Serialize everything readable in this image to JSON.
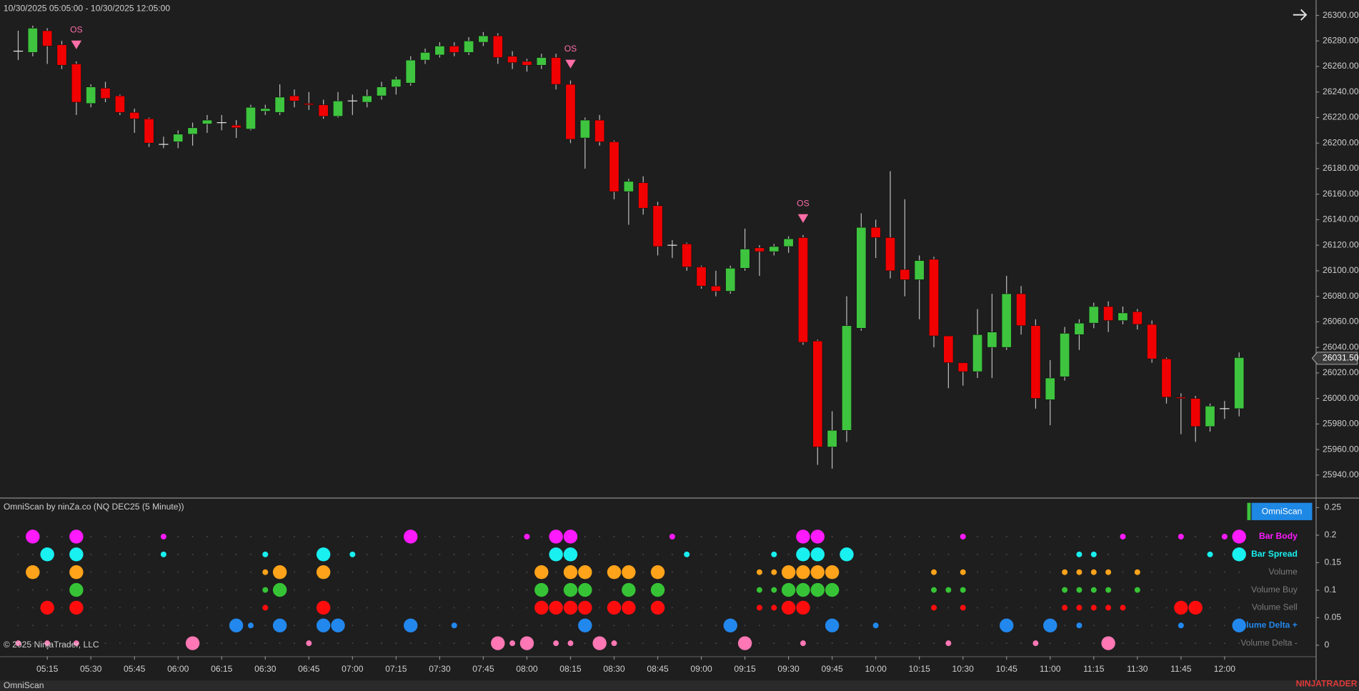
{
  "ui": {
    "range": "10/30/2025 05:05:00 - 10/30/2025 12:05:00",
    "copyright": "© 2025 NinjaTrader, LLC",
    "logo": "NINJATRADER",
    "tab": "OmniScan"
  },
  "chart_data": [
    {
      "type": "candlestick",
      "categories": [
        null,
        null,
        "05:15",
        null,
        null,
        "05:30",
        null,
        null,
        "05:45",
        null,
        null,
        "06:00",
        null,
        null,
        "06:15",
        null,
        null,
        "06:30",
        null,
        null,
        "06:45",
        null,
        null,
        "07:00",
        null,
        null,
        "07:15",
        null,
        null,
        "07:30",
        null,
        null,
        "07:45",
        null,
        null,
        "08:00",
        null,
        null,
        "08:15",
        null,
        null,
        "08:30",
        null,
        null,
        "08:45",
        null,
        null,
        "09:00",
        null,
        null,
        "09:15",
        null,
        null,
        "09:30",
        null,
        null,
        "09:45",
        null,
        null,
        "10:00",
        null,
        null,
        "10:15",
        null,
        null,
        "10:30",
        null,
        null,
        "10:45",
        null,
        null,
        "11:00",
        null,
        null,
        "11:15",
        null,
        null,
        "11:30",
        null,
        null,
        "11:45",
        null,
        null,
        "12:00",
        null
      ],
      "open": [
        26272,
        26271,
        26288,
        26277,
        26262,
        26231,
        26243,
        26237,
        26224,
        26219,
        26199,
        26201,
        26207,
        26215,
        26216,
        26214,
        26211,
        26225,
        26224,
        26237,
        26231,
        26230,
        26221,
        26233,
        26232,
        26237,
        26244,
        26247,
        26265,
        26269,
        26276,
        26271,
        26279,
        26284,
        26268,
        26264,
        26261,
        26267,
        26246,
        26204,
        26218,
        26201,
        26162,
        26169,
        26151,
        26120,
        26121,
        26103,
        26088,
        26084,
        26102,
        26118,
        26115,
        26119,
        26126,
        26045,
        25962,
        25975,
        26055,
        26134,
        26126,
        26101,
        26093,
        26109,
        26049,
        26028,
        26021,
        26040,
        26040,
        26082,
        26057,
        25999,
        26017,
        26050,
        26059,
        26072,
        26061,
        26068,
        26058,
        26031,
        26001,
        26000,
        25978,
        25992,
        25992
      ],
      "high": [
        26288,
        26292,
        26290,
        26280,
        26264,
        26246,
        26248,
        26238,
        26227,
        26220,
        26205,
        26210,
        26216,
        26222,
        26222,
        26218,
        26230,
        26230,
        26246,
        26242,
        26240,
        26234,
        26240,
        26238,
        26242,
        26248,
        26252,
        26268,
        26274,
        26279,
        26279,
        26283,
        26287,
        26286,
        26272,
        26266,
        26270,
        26270,
        26249,
        26220,
        26222,
        26202,
        26172,
        26174,
        26154,
        26124,
        26122,
        26104,
        26100,
        26104,
        26133,
        26120,
        26121,
        26127,
        26128,
        26046,
        25990,
        26080,
        26145,
        26140,
        26178,
        26156,
        26112,
        26111,
        26049,
        26028,
        26070,
        26082,
        26096,
        26088,
        26062,
        26030,
        26056,
        26062,
        26075,
        26076,
        26072,
        26070,
        26061,
        26032,
        26004,
        26002,
        25996,
        25998,
        26036
      ],
      "low": [
        26265,
        26268,
        26262,
        26258,
        26222,
        26228,
        26232,
        26222,
        26208,
        26197,
        26196,
        26196,
        26198,
        26208,
        26210,
        26204,
        26210,
        26222,
        26222,
        26228,
        26226,
        26219,
        26220,
        26222,
        26228,
        26234,
        26238,
        26245,
        26262,
        26267,
        26268,
        26269,
        26276,
        26262,
        26258,
        26256,
        26258,
        26242,
        26200,
        26180,
        26198,
        26156,
        26136,
        26144,
        26112,
        26110,
        26100,
        26086,
        26080,
        26082,
        26100,
        26096,
        26112,
        26114,
        26042,
        25948,
        25945,
        25966,
        26053,
        26110,
        26094,
        26080,
        26062,
        26040,
        26008,
        26010,
        26016,
        26016,
        26038,
        26050,
        25992,
        25979,
        26014,
        26038,
        26055,
        26052,
        26058,
        26054,
        26028,
        25996,
        25972,
        25966,
        25974,
        25984,
        25986
      ],
      "close": [
        26272,
        26290,
        26276,
        26261,
        26232,
        26244,
        26235,
        26224,
        26219,
        26200,
        26199,
        26207,
        26212,
        26218,
        26216,
        26212,
        26228,
        26227,
        26236,
        26233,
        26230,
        26221,
        26233,
        26233,
        26237,
        26244,
        26250,
        26265,
        26271,
        26276,
        26271,
        26280,
        26284,
        26267,
        26263,
        26261,
        26267,
        26246,
        26203,
        26218,
        26201,
        26162,
        26170,
        26149,
        26119,
        26120,
        26103,
        26088,
        26084,
        26102,
        26117,
        26115,
        26119,
        26125,
        26044,
        25962,
        25975,
        26057,
        26134,
        26126,
        26100,
        26093,
        26108,
        26049,
        26028,
        26021,
        26050,
        26052,
        26082,
        26057,
        26000,
        26016,
        26051,
        26059,
        26072,
        26061,
        26067,
        26058,
        26031,
        26001,
        26000,
        25978,
        25994,
        25992,
        26032
      ],
      "up_color": "#3ec43e",
      "down_color": "#f00000",
      "wick_color": "#bdbdbd",
      "ylim": [
        25923,
        26312
      ],
      "yticks": [
        {
          "value": 25940,
          "label": "25940.00"
        },
        {
          "value": 25960,
          "label": "25960.00"
        },
        {
          "value": 25980,
          "label": "25980.00"
        },
        {
          "value": 26000,
          "label": "26000.00"
        },
        {
          "value": 26020,
          "label": "26020.00"
        },
        {
          "value": 26040,
          "label": "26040.00"
        },
        {
          "value": 26060,
          "label": "26060.00"
        },
        {
          "value": 26080,
          "label": "26080.00"
        },
        {
          "value": 26100,
          "label": "26100.00"
        },
        {
          "value": 26120,
          "label": "26120.00"
        },
        {
          "value": 26140,
          "label": "26140.00"
        },
        {
          "value": 26160,
          "label": "26160.00"
        },
        {
          "value": 26180,
          "label": "26180.00"
        },
        {
          "value": 26200,
          "label": "26200.00"
        },
        {
          "value": 26220,
          "label": "26220.00"
        },
        {
          "value": 26240,
          "label": "26240.00"
        },
        {
          "value": 26260,
          "label": "26260.00"
        },
        {
          "value": 26280,
          "label": "26280.00"
        },
        {
          "value": 26300,
          "label": "26300.00"
        }
      ],
      "last_price": {
        "value": 26031.5,
        "label": "26031.50"
      },
      "annotations": [
        {
          "text": "OS",
          "index": 4,
          "color": "#ff6ea8"
        },
        {
          "text": "OS",
          "index": 38,
          "color": "#ff6ea8"
        },
        {
          "text": "OS",
          "index": 54,
          "color": "#ff6ea8"
        }
      ]
    },
    {
      "type": "dot-matrix",
      "title": "OmniScan by ninZa.co (NQ DEC25 (5 Minute))",
      "button": "OmniScan",
      "ylim": [
        -0.02,
        0.265
      ],
      "yticks": [
        0,
        0.05,
        0.1,
        0.15,
        0.2,
        0.25
      ],
      "rows": [
        {
          "name": "Bar Body",
          "color": "#ff1aff",
          "label_color": "#ff1aff",
          "values": [
            0,
            2,
            0,
            0,
            2,
            0,
            0,
            0,
            0,
            0,
            1,
            0,
            0,
            0,
            0,
            0,
            0,
            0,
            0,
            0,
            0,
            0,
            0,
            0,
            0,
            0,
            0,
            2,
            0,
            0,
            0,
            0,
            0,
            0,
            0,
            1,
            0,
            2,
            2,
            0,
            0,
            0,
            0,
            0,
            0,
            1,
            0,
            0,
            0,
            0,
            0,
            0,
            0,
            0,
            2,
            2,
            0,
            0,
            0,
            0,
            0,
            0,
            0,
            0,
            0,
            1,
            0,
            0,
            0,
            0,
            0,
            0,
            0,
            0,
            0,
            0,
            1,
            0,
            0,
            0,
            1,
            0,
            0,
            1,
            2
          ]
        },
        {
          "name": "Bar Spread",
          "color": "#19f0f0",
          "label_color": "#19f0f0",
          "values": [
            0,
            0,
            2,
            0,
            2,
            0,
            0,
            0,
            0,
            0,
            1,
            0,
            0,
            0,
            0,
            0,
            0,
            1,
            0,
            0,
            0,
            2,
            0,
            1,
            0,
            0,
            0,
            0,
            0,
            0,
            0,
            0,
            0,
            0,
            0,
            0,
            0,
            2,
            2,
            0,
            0,
            0,
            0,
            0,
            0,
            0,
            1,
            0,
            0,
            0,
            0,
            0,
            1,
            0,
            2,
            2,
            0,
            2,
            0,
            0,
            0,
            0,
            0,
            0,
            0,
            0,
            0,
            0,
            0,
            0,
            0,
            0,
            0,
            1,
            1,
            0,
            0,
            0,
            0,
            0,
            0,
            0,
            1,
            0,
            2
          ]
        },
        {
          "name": "Volume",
          "color": "#ffa31a",
          "label_color": "#7a7a7a",
          "values": [
            0,
            2,
            0,
            0,
            2,
            0,
            0,
            0,
            0,
            0,
            0,
            0,
            0,
            0,
            0,
            0,
            0,
            1,
            2,
            0,
            0,
            2,
            0,
            0,
            0,
            0,
            0,
            0,
            0,
            0,
            0,
            0,
            0,
            0,
            0,
            0,
            2,
            0,
            2,
            2,
            0,
            2,
            2,
            0,
            2,
            0,
            0,
            0,
            0,
            0,
            0,
            1,
            1,
            2,
            2,
            2,
            2,
            0,
            0,
            0,
            0,
            0,
            0,
            1,
            0,
            1,
            0,
            0,
            0,
            0,
            0,
            0,
            1,
            1,
            1,
            1,
            0,
            1,
            0,
            0,
            0,
            0,
            0,
            0,
            0
          ]
        },
        {
          "name": "Volume Buy",
          "color": "#36c436",
          "label_color": "#7a7a7a",
          "values": [
            0,
            0,
            0,
            0,
            2,
            0,
            0,
            0,
            0,
            0,
            0,
            0,
            0,
            0,
            0,
            0,
            0,
            1,
            2,
            0,
            0,
            0,
            0,
            0,
            0,
            0,
            0,
            0,
            0,
            0,
            0,
            0,
            0,
            0,
            0,
            0,
            2,
            0,
            2,
            2,
            0,
            0,
            2,
            0,
            2,
            0,
            0,
            0,
            0,
            0,
            0,
            1,
            1,
            2,
            2,
            2,
            2,
            0,
            0,
            0,
            0,
            0,
            0,
            1,
            1,
            1,
            0,
            0,
            0,
            0,
            0,
            0,
            1,
            1,
            1,
            1,
            0,
            1,
            0,
            0,
            0,
            0,
            0,
            0,
            0
          ]
        },
        {
          "name": "Volume Sell",
          "color": "#ff0d0d",
          "label_color": "#7a7a7a",
          "values": [
            0,
            0,
            2,
            0,
            2,
            0,
            0,
            0,
            0,
            0,
            0,
            0,
            0,
            0,
            0,
            0,
            0,
            1,
            0,
            0,
            0,
            2,
            0,
            0,
            0,
            0,
            0,
            0,
            0,
            0,
            0,
            0,
            0,
            0,
            0,
            0,
            2,
            2,
            2,
            2,
            0,
            2,
            2,
            0,
            2,
            0,
            0,
            0,
            0,
            0,
            0,
            1,
            1,
            2,
            2,
            0,
            0,
            0,
            0,
            0,
            0,
            0,
            0,
            1,
            0,
            1,
            0,
            0,
            0,
            0,
            0,
            0,
            1,
            1,
            1,
            1,
            1,
            0,
            0,
            0,
            2,
            2,
            0,
            0,
            0
          ]
        },
        {
          "name": "Volume Delta +",
          "color": "#2288ee",
          "label_color": "#2288ee",
          "values": [
            0,
            0,
            0,
            0,
            0,
            0,
            0,
            0,
            0,
            0,
            0,
            0,
            0,
            0,
            0,
            2,
            1,
            0,
            2,
            0,
            0,
            2,
            2,
            0,
            0,
            0,
            0,
            2,
            0,
            0,
            1,
            0,
            0,
            0,
            0,
            0,
            0,
            0,
            0,
            2,
            0,
            0,
            0,
            0,
            0,
            0,
            0,
            0,
            0,
            2,
            0,
            0,
            0,
            0,
            0,
            0,
            2,
            0,
            0,
            1,
            0,
            0,
            0,
            0,
            0,
            0,
            0,
            0,
            2,
            0,
            0,
            2,
            0,
            1,
            0,
            0,
            0,
            0,
            0,
            0,
            1,
            0,
            0,
            0,
            2
          ]
        },
        {
          "name": "Volume Delta -",
          "color": "#ff77b4",
          "label_color": "#7a7a7a",
          "values": [
            1,
            0,
            1,
            0,
            1,
            0,
            0,
            0,
            0,
            0,
            0,
            0,
            2,
            0,
            0,
            0,
            0,
            0,
            0,
            0,
            1,
            0,
            0,
            0,
            0,
            0,
            0,
            0,
            0,
            0,
            0,
            0,
            0,
            2,
            1,
            2,
            0,
            1,
            1,
            0,
            2,
            1,
            0,
            0,
            0,
            0,
            0,
            0,
            0,
            0,
            2,
            0,
            0,
            0,
            1,
            0,
            0,
            0,
            0,
            0,
            0,
            0,
            0,
            0,
            1,
            0,
            0,
            0,
            0,
            0,
            1,
            0,
            0,
            0,
            0,
            2,
            0,
            0,
            0,
            0,
            0,
            0,
            0,
            0,
            0
          ]
        }
      ]
    }
  ]
}
